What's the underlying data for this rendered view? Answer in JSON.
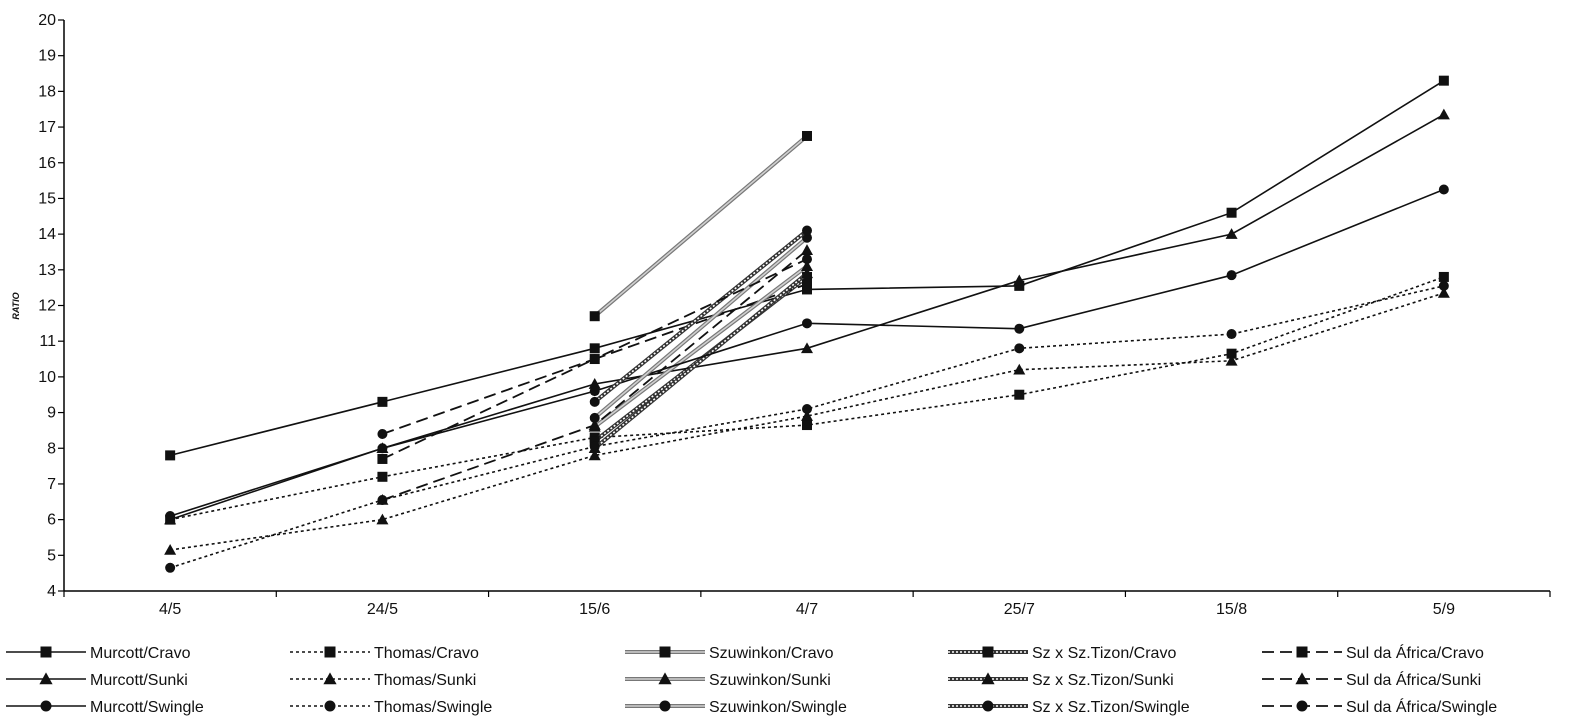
{
  "chart_data": {
    "type": "line",
    "title": "",
    "xlabel": "",
    "ylabel": "RATIO",
    "categories": [
      "4/5",
      "24/5",
      "15/6",
      "4/7",
      "25/7",
      "15/8",
      "5/9"
    ],
    "ylim": [
      4,
      20
    ],
    "yticks": [
      4,
      5,
      6,
      7,
      8,
      9,
      10,
      11,
      12,
      13,
      14,
      15,
      16,
      17,
      18,
      19,
      20
    ],
    "grid": false,
    "legend_position": "bottom",
    "series": [
      {
        "name": "Murcott/Cravo",
        "style": "solid",
        "marker": "square",
        "values": [
          7.8,
          9.3,
          10.8,
          12.45,
          12.55,
          14.6,
          18.3
        ]
      },
      {
        "name": "Thomas/Cravo",
        "style": "dotted",
        "marker": "square",
        "values": [
          6.0,
          7.2,
          8.3,
          8.65,
          9.5,
          10.65,
          12.8
        ]
      },
      {
        "name": "Szuwinkon/Cravo",
        "style": "double-gray",
        "marker": "square",
        "values": [
          null,
          null,
          11.7,
          16.75,
          null,
          null,
          null
        ]
      },
      {
        "name": "Sz x Sz.Tizon/Cravo",
        "style": "double-hatched",
        "marker": "square",
        "values": [
          null,
          null,
          8.2,
          12.8,
          null,
          null,
          null
        ]
      },
      {
        "name": "Sul da África/Cravo",
        "style": "dashed",
        "marker": "square",
        "values": [
          null,
          7.7,
          10.5,
          12.6,
          null,
          null,
          null
        ]
      },
      {
        "name": "Murcott/Sunki",
        "style": "solid",
        "marker": "triangle",
        "values": [
          6.0,
          8.0,
          9.8,
          10.8,
          12.7,
          14.0,
          17.35
        ]
      },
      {
        "name": "Thomas/Sunki",
        "style": "dotted",
        "marker": "triangle",
        "values": [
          5.15,
          6.0,
          7.8,
          8.9,
          10.2,
          10.45,
          12.35
        ]
      },
      {
        "name": "Szuwinkon/Sunki",
        "style": "double-gray",
        "marker": "triangle",
        "values": [
          null,
          null,
          8.6,
          13.1,
          null,
          null,
          null
        ]
      },
      {
        "name": "Sz x Sz.Tizon/Sunki",
        "style": "double-hatched",
        "marker": "triangle",
        "values": [
          null,
          null,
          8.0,
          12.9,
          null,
          null,
          null
        ]
      },
      {
        "name": "Sul da África/Sunki",
        "style": "dashed",
        "marker": "triangle",
        "values": [
          null,
          6.55,
          8.65,
          13.55,
          null,
          null,
          null
        ]
      },
      {
        "name": "Murcott/Swingle",
        "style": "solid",
        "marker": "circle",
        "values": [
          6.1,
          8.0,
          9.6,
          11.5,
          11.35,
          12.85,
          15.25
        ]
      },
      {
        "name": "Thomas/Swingle",
        "style": "dotted",
        "marker": "circle",
        "values": [
          4.65,
          6.55,
          8.05,
          9.1,
          10.8,
          11.2,
          12.55
        ]
      },
      {
        "name": "Szuwinkon/Swingle",
        "style": "double-gray",
        "marker": "circle",
        "values": [
          null,
          null,
          8.85,
          13.9,
          null,
          null,
          null
        ]
      },
      {
        "name": "Sz x Sz.Tizon/Swingle",
        "style": "double-hatched",
        "marker": "circle",
        "values": [
          null,
          null,
          9.3,
          14.1,
          null,
          null,
          null
        ]
      },
      {
        "name": "Sul da África/Swingle",
        "style": "dashed",
        "marker": "circle",
        "values": [
          null,
          8.4,
          10.5,
          13.3,
          null,
          null,
          null
        ]
      }
    ]
  }
}
